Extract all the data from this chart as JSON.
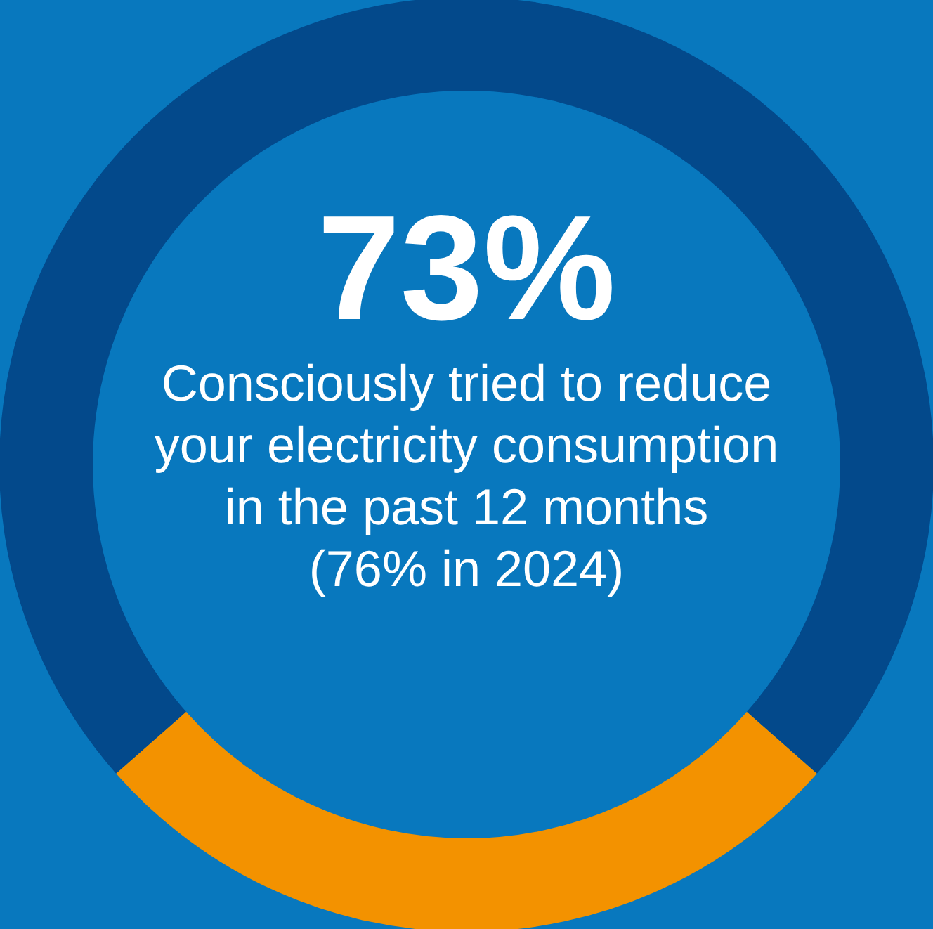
{
  "chart_data": {
    "type": "donut",
    "title": "73%",
    "subtitle": "Consciously tried to reduce your electricity consumption in the past 12 months",
    "annotations": [
      "(76% in 2024)"
    ],
    "categories": [
      null,
      null
    ],
    "values": [
      27,
      73
    ],
    "colors": [
      "#f39200",
      "#03498b"
    ]
  }
}
